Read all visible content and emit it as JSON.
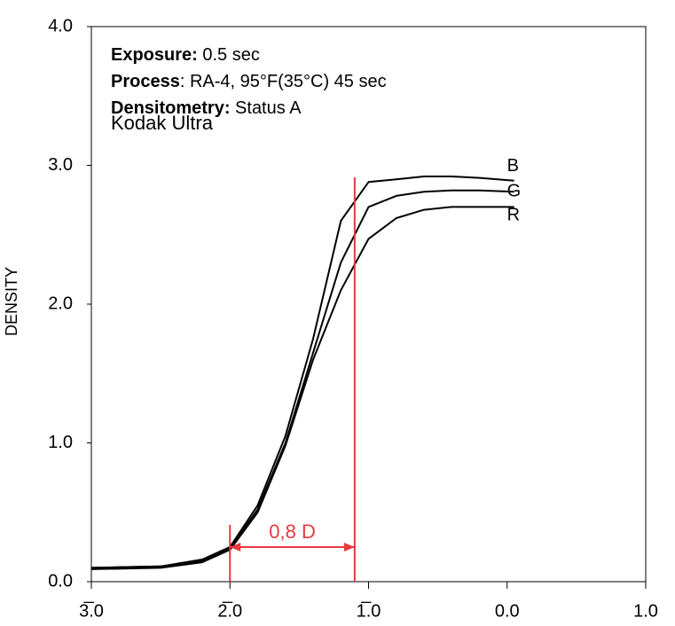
{
  "chart_data": {
    "type": "line",
    "y_label": "DENSITY",
    "annotations": [
      {
        "label": "Exposure:",
        "text": " 0.5 sec"
      },
      {
        "label": "Process",
        "text": ": RA-4, 95°F(35°C) 45 sec"
      },
      {
        "label": "Densitometry:",
        "text": " Status A"
      }
    ],
    "subtitle": "Kodak Ultra",
    "x": [
      -3.0,
      -2.5,
      -2.2,
      -2.0,
      -1.8,
      -1.6,
      -1.4,
      -1.2,
      -1.0,
      -0.8,
      -0.6,
      -0.4,
      -0.2,
      0.05
    ],
    "series": [
      {
        "name": "B",
        "color": "#000000",
        "values": [
          0.1,
          0.11,
          0.16,
          0.25,
          0.55,
          1.05,
          1.75,
          2.6,
          2.88,
          2.9,
          2.92,
          2.92,
          2.91,
          2.89
        ]
      },
      {
        "name": "G",
        "color": "#000000",
        "values": [
          0.1,
          0.11,
          0.15,
          0.24,
          0.52,
          1.0,
          1.65,
          2.3,
          2.7,
          2.78,
          2.81,
          2.82,
          2.82,
          2.81
        ]
      },
      {
        "name": "R",
        "color": "#000000",
        "values": [
          0.09,
          0.1,
          0.14,
          0.23,
          0.5,
          0.98,
          1.6,
          2.1,
          2.47,
          2.62,
          2.68,
          2.7,
          2.7,
          2.7
        ]
      }
    ],
    "reference_lines": {
      "color": "#e8393f",
      "x": [
        -2.0,
        -1.1
      ],
      "label": "0,8 D"
    },
    "xlim": [
      -3.0,
      1.0
    ],
    "xticks": [
      {
        "value": -3,
        "label": "3̅.0"
      },
      {
        "value": -2,
        "label": "2̅.0"
      },
      {
        "value": -1,
        "label": "1̅.0"
      },
      {
        "value": 0,
        "label": "0.0"
      },
      {
        "value": 1,
        "label": "1.0"
      }
    ],
    "ylim": [
      0,
      4
    ],
    "yticks": [
      {
        "value": 0,
        "label": "0.0"
      },
      {
        "value": 1,
        "label": "1.0"
      },
      {
        "value": 2,
        "label": "2.0"
      },
      {
        "value": 3,
        "label": "3.0"
      },
      {
        "value": 4,
        "label": "4.0"
      }
    ]
  }
}
